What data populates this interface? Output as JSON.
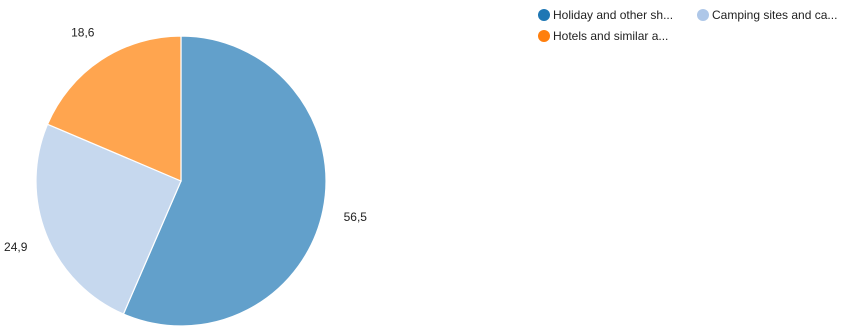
{
  "chart_data": {
    "type": "pie",
    "series": [
      {
        "name": "Holiday and other sh...",
        "value": 56.5,
        "label": "56,5",
        "color": "#1f77b4",
        "slice_color": "#62a0cb"
      },
      {
        "name": "Camping sites and ca...",
        "value": 24.9,
        "label": "24,9",
        "color": "#aec7e8",
        "slice_color": "#c6d8ee"
      },
      {
        "name": "Hotels and similar a...",
        "value": 18.6,
        "label": "18,6",
        "color": "#ff7f0e",
        "slice_color": "#ffa54f"
      }
    ],
    "start_angle": "12 o'clock",
    "direction": "clockwise",
    "legend_position": "top-right"
  }
}
